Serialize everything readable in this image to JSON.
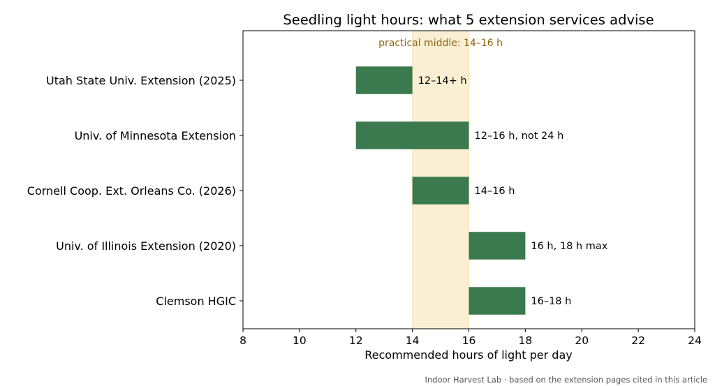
{
  "chart_data": {
    "type": "bar",
    "orientation": "horizontal",
    "title": "Seedling light hours: what 5 extension services advise",
    "xlabel": "Recommended hours of light per day",
    "ylabel": "",
    "xlim": [
      8,
      24
    ],
    "x_ticks": [
      "8",
      "10",
      "12",
      "14",
      "16",
      "18",
      "20",
      "22",
      "24"
    ],
    "categories": [
      "Utah State Univ. Extension (2025)",
      "Univ. of Minnesota Extension",
      "Cornell Coop. Ext. Orleans Co. (2026)",
      "Univ. of Illinois Extension (2020)",
      "Clemson HGIC"
    ],
    "ranges": [
      {
        "start": 12,
        "end": 14,
        "label": "12–14+ h"
      },
      {
        "start": 12,
        "end": 16,
        "label": "12–16 h, not 24 h"
      },
      {
        "start": 14,
        "end": 16,
        "label": "14–16 h"
      },
      {
        "start": 16,
        "end": 18,
        "label": "16 h, 18 h max"
      },
      {
        "start": 16,
        "end": 18,
        "label": "16–18 h"
      }
    ],
    "band": {
      "start": 14,
      "end": 16,
      "label": "practical middle: 14–16 h"
    },
    "grid": false,
    "colors": {
      "bar": "#3a7a4e",
      "band": "#faefd2",
      "band_text": "#8a6410",
      "axis": "#000000"
    }
  },
  "credit": "Indoor Harvest Lab · based on the extension pages cited in this article"
}
